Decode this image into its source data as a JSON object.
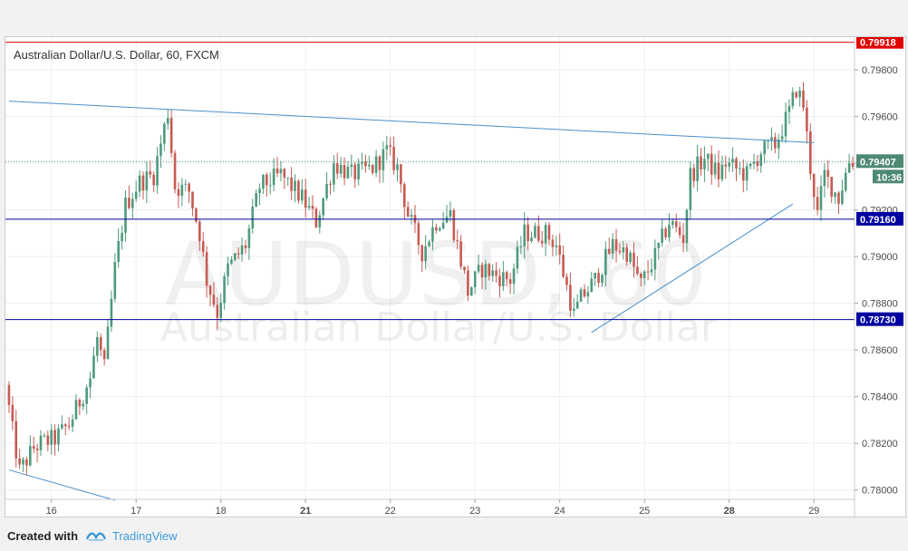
{
  "chart_data": {
    "type": "candlestick",
    "title": "Australian Dollar/U.S. Dollar, 60, FXCM",
    "watermark_symbol": "AUDUSD, 60",
    "watermark_name": "Australian Dollar/U.S. Dollar",
    "ylim": [
      0.7796,
      0.7994
    ],
    "y_ticks": [
      0.78,
      0.782,
      0.784,
      0.786,
      0.788,
      0.79,
      0.792,
      0.794,
      0.796,
      0.798
    ],
    "y_tick_labels": [
      "0.78000",
      "0.78200",
      "0.78400",
      "0.78600",
      "0.78800",
      "0.79000",
      "0.79200",
      "0.79400",
      "0.79600",
      "0.79800"
    ],
    "x_labels": [
      "16",
      "17",
      "18",
      "21",
      "22",
      "23",
      "24",
      "25",
      "28",
      "29"
    ],
    "x_label_bar_index": [
      12,
      36,
      60,
      84,
      108,
      132,
      156,
      180,
      204,
      228
    ],
    "bold_x_labels": [
      "21",
      "28"
    ],
    "horizontal_levels": [
      {
        "value": 0.79918,
        "label": "0.79918",
        "color": "#e00000"
      },
      {
        "value": 0.7916,
        "label": "0.79160",
        "color": "#0000a0"
      },
      {
        "value": 0.7873,
        "label": "0.78730",
        "color": "#0000a0"
      }
    ],
    "last_price": {
      "value": 0.79407,
      "label": "0.79407",
      "time_label": "10:36",
      "color": "#4e8a73"
    },
    "trendlines": [
      {
        "from": [
          0,
          0.79666
        ],
        "to": [
          228,
          0.79488
        ]
      },
      {
        "from": [
          0,
          0.78086
        ],
        "to": [
          30,
          0.77956
        ]
      },
      {
        "from": [
          165,
          0.78675
        ],
        "to": [
          222,
          0.79225
        ]
      }
    ],
    "up_color": "#4e9a7b",
    "down_color": "#c65b52",
    "keypoints": [
      [
        0,
        0.7845
      ],
      [
        2,
        0.7825
      ],
      [
        4,
        0.7808
      ],
      [
        8,
        0.7818
      ],
      [
        10,
        0.782
      ],
      [
        14,
        0.7822
      ],
      [
        18,
        0.7828
      ],
      [
        24,
        0.7848
      ],
      [
        26,
        0.7865
      ],
      [
        28,
        0.7852
      ],
      [
        31,
        0.7895
      ],
      [
        34,
        0.7922
      ],
      [
        38,
        0.7932
      ],
      [
        42,
        0.7935
      ],
      [
        46,
        0.7962
      ],
      [
        48,
        0.793
      ],
      [
        52,
        0.7928
      ],
      [
        55,
        0.791
      ],
      [
        57,
        0.789
      ],
      [
        60,
        0.7876
      ],
      [
        63,
        0.7895
      ],
      [
        68,
        0.7905
      ],
      [
        72,
        0.793
      ],
      [
        78,
        0.7935
      ],
      [
        84,
        0.7925
      ],
      [
        88,
        0.7915
      ],
      [
        93,
        0.794
      ],
      [
        98,
        0.7935
      ],
      [
        104,
        0.7938
      ],
      [
        108,
        0.7945
      ],
      [
        111,
        0.7938
      ],
      [
        114,
        0.7918
      ],
      [
        118,
        0.7902
      ],
      [
        122,
        0.7915
      ],
      [
        126,
        0.7918
      ],
      [
        131,
        0.7885
      ],
      [
        135,
        0.7895
      ],
      [
        139,
        0.7892
      ],
      [
        143,
        0.789
      ],
      [
        147,
        0.791
      ],
      [
        153,
        0.791
      ],
      [
        156,
        0.7905
      ],
      [
        161,
        0.7875
      ],
      [
        163,
        0.7882
      ],
      [
        167,
        0.789
      ],
      [
        172,
        0.7905
      ],
      [
        176,
        0.7902
      ],
      [
        180,
        0.7888
      ],
      [
        184,
        0.79
      ],
      [
        188,
        0.7915
      ],
      [
        192,
        0.7908
      ],
      [
        194,
        0.7935
      ],
      [
        198,
        0.7942
      ],
      [
        202,
        0.7935
      ],
      [
        204,
        0.794
      ],
      [
        210,
        0.7935
      ],
      [
        214,
        0.7945
      ],
      [
        218,
        0.7948
      ],
      [
        222,
        0.7962
      ],
      [
        224,
        0.7972
      ],
      [
        226,
        0.7965
      ],
      [
        228,
        0.7938
      ],
      [
        230,
        0.7918
      ],
      [
        232,
        0.7935
      ],
      [
        236,
        0.7925
      ],
      [
        239,
        0.7941
      ]
    ],
    "bar_count": 240
  },
  "footer": {
    "created_with": "Created with",
    "brand": "TradingView",
    "brand_color": "#3d9ad9"
  }
}
